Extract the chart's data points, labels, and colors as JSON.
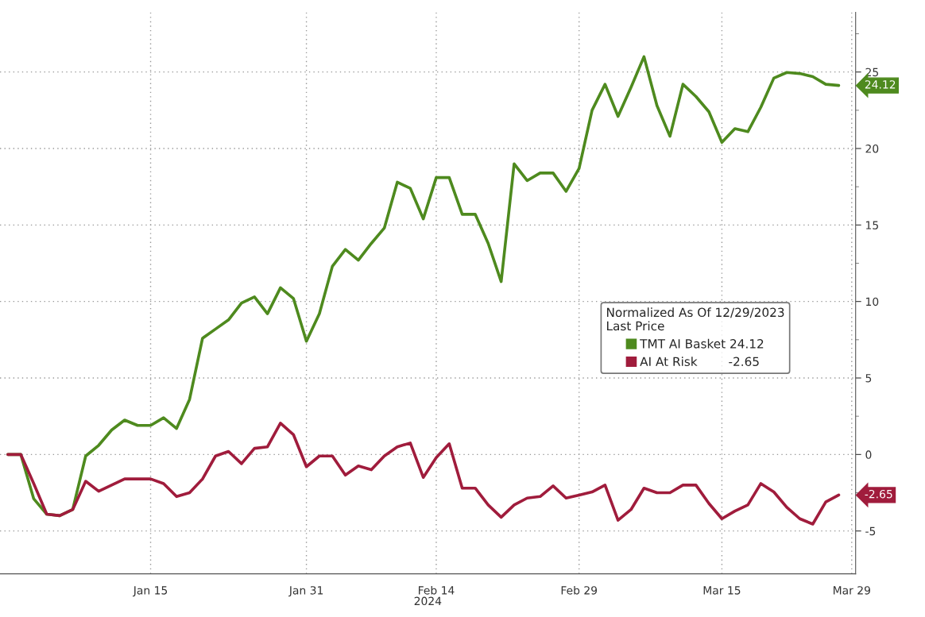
{
  "chart_data": {
    "type": "line",
    "xlabel": "2024",
    "legend_title": "Normalized As Of 12/29/2023\nLast Price",
    "categories": [
      null,
      null,
      null,
      null,
      null,
      null,
      null,
      null,
      null,
      null,
      null,
      "Jan 15",
      null,
      null,
      null,
      null,
      null,
      null,
      null,
      null,
      null,
      null,
      null,
      "Jan 31",
      null,
      null,
      null,
      null,
      null,
      null,
      null,
      null,
      null,
      "Feb 14",
      null,
      null,
      null,
      null,
      null,
      null,
      null,
      null,
      null,
      null,
      "Feb 29",
      null,
      null,
      null,
      null,
      null,
      null,
      null,
      null,
      null,
      null,
      "Mar 15",
      null,
      null,
      null,
      null,
      null,
      null,
      null,
      null,
      null,
      "Mar 29"
    ],
    "series": [
      {
        "name": "TMT AI Basket 24.12",
        "color": "#4e8a1e",
        "values": [
          0,
          0,
          -2.9,
          -3.9,
          -4.0,
          -3.6,
          -0.1,
          0.6,
          1.6,
          2.25,
          1.9,
          1.9,
          2.4,
          1.7,
          3.6,
          7.6,
          8.2,
          8.8,
          9.9,
          10.3,
          9.2,
          10.9,
          10.2,
          7.4,
          9.2,
          12.3,
          13.4,
          12.7,
          13.8,
          14.8,
          17.8,
          17.4,
          15.4,
          18.1,
          18.1,
          15.7,
          15.7,
          13.8,
          11.3,
          19.0,
          17.9,
          18.4,
          18.4,
          17.2,
          18.7,
          22.5,
          24.2,
          22.1,
          24.0,
          26.0,
          22.8,
          20.8,
          24.2,
          23.4,
          22.4,
          20.4,
          21.3,
          21.1,
          22.7,
          24.6,
          24.97,
          24.9,
          24.7,
          24.2,
          24.12,
          null
        ]
      },
      {
        "name": "AI At Risk        -2.65",
        "color": "#a01c3c",
        "values": [
          0,
          0,
          -1.9,
          -3.9,
          -4.0,
          -3.6,
          -1.75,
          -2.4,
          -2.0,
          -1.6,
          -1.6,
          -1.6,
          -1.9,
          -2.75,
          -2.5,
          -1.6,
          -0.1,
          0.2,
          -0.6,
          0.4,
          0.5,
          2.05,
          1.3,
          -0.8,
          -0.1,
          -0.1,
          -1.35,
          -0.75,
          -1.0,
          -0.1,
          0.5,
          0.75,
          -1.5,
          -0.2,
          0.7,
          -2.2,
          -2.2,
          -3.3,
          -4.1,
          -3.3,
          -2.85,
          -2.75,
          -2.05,
          -2.85,
          -2.65,
          -2.45,
          -2.0,
          -4.3,
          -3.6,
          -2.2,
          -2.5,
          -2.5,
          -2.0,
          -2.0,
          -3.2,
          -4.2,
          -3.7,
          -3.3,
          -1.9,
          -2.45,
          -3.45,
          -4.2,
          -4.55,
          -3.1,
          -2.65,
          null
        ]
      }
    ],
    "annotations": [
      "24.12",
      "-2.65"
    ],
    "ylim": [
      -7.8,
      28.9
    ],
    "yticks": [
      -5,
      {
        "value": -2.5,
        "label": null
      },
      0,
      {
        "value": 2.5,
        "label": null
      },
      5,
      {
        "value": 7.5,
        "label": null
      },
      10,
      {
        "value": 12.5,
        "label": null
      },
      15,
      {
        "value": 17.5,
        "label": null
      },
      20,
      {
        "value": 22.5,
        "label": null
      },
      25,
      {
        "value": 27.5,
        "label": null
      }
    ],
    "grid": true,
    "legend": "right",
    "line_style": "solid",
    "marker": "none"
  }
}
